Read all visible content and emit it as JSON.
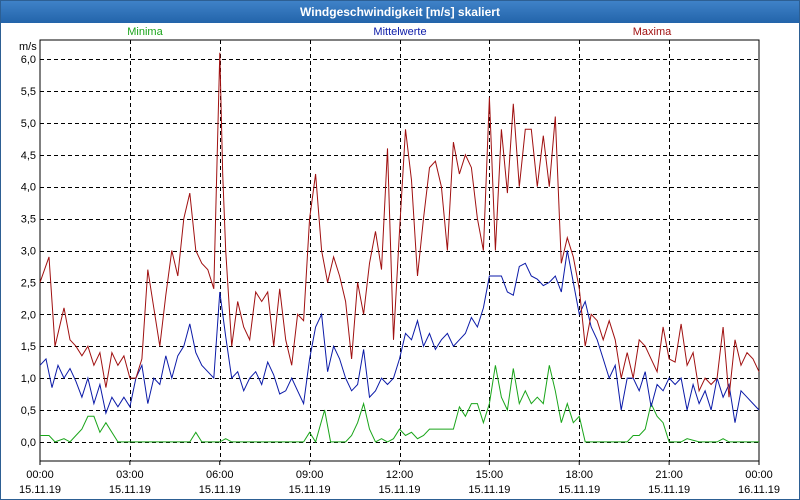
{
  "window": {
    "title": "Windgeschwindigkeit [m/s] skaliert"
  },
  "chart_data": {
    "type": "line",
    "title": "Windgeschwindigkeit [m/s] skaliert",
    "ylabel": "m/s",
    "ylim": [
      -0.3,
      6.3
    ],
    "xlim": [
      0,
      24
    ],
    "yticks": [
      0.0,
      0.5,
      1.0,
      1.5,
      2.0,
      2.5,
      3.0,
      3.5,
      4.0,
      4.5,
      5.0,
      5.5,
      6.0
    ],
    "ytick_labels": [
      "0,0",
      "0,5",
      "1,0",
      "1,5",
      "2,0",
      "2,5",
      "3,0",
      "3,5",
      "4,0",
      "4,5",
      "5,0",
      "5,5",
      "6,0"
    ],
    "xticks": [
      {
        "time": "00:00",
        "date": "15.11.19"
      },
      {
        "time": "03:00",
        "date": "15.11.19"
      },
      {
        "time": "06:00",
        "date": "15.11.19"
      },
      {
        "time": "09:00",
        "date": "15.11.19"
      },
      {
        "time": "12:00",
        "date": "15.11.19"
      },
      {
        "time": "15:00",
        "date": "15.11.19"
      },
      {
        "time": "18:00",
        "date": "15.11.19"
      },
      {
        "time": "21:00",
        "date": "15.11.19"
      },
      {
        "time": "00:00",
        "date": "16.11.19"
      }
    ],
    "grid": true,
    "series": [
      {
        "name": "Minima",
        "color": "#1aa51a",
        "x": [
          0,
          0.3,
          0.5,
          0.8,
          1.0,
          1.2,
          1.4,
          1.6,
          1.8,
          2.0,
          2.2,
          2.6,
          3.0,
          5.0,
          5.2,
          5.4,
          6.0,
          6.2,
          6.4,
          8.8,
          9.0,
          9.2,
          9.5,
          9.7,
          10.0,
          10.2,
          10.4,
          10.6,
          10.8,
          11.0,
          11.2,
          11.4,
          11.6,
          11.8,
          12.0,
          12.2,
          12.4,
          12.6,
          12.8,
          13.0,
          13.4,
          13.8,
          14.0,
          14.2,
          14.4,
          14.6,
          14.8,
          15.0,
          15.2,
          15.4,
          15.6,
          15.8,
          16.0,
          16.2,
          16.4,
          16.6,
          16.8,
          17.0,
          17.2,
          17.4,
          17.6,
          17.8,
          18.0,
          18.2,
          18.4,
          18.6,
          19.0,
          19.4,
          19.6,
          19.8,
          20.0,
          20.2,
          20.4,
          20.6,
          20.8,
          21.0,
          21.2,
          21.4,
          21.6,
          22.0,
          22.6,
          22.8,
          23.0,
          23.4,
          24.0
        ],
        "values": [
          0.1,
          0.1,
          0.0,
          0.05,
          0.0,
          0.1,
          0.2,
          0.4,
          0.4,
          0.15,
          0.3,
          0.0,
          0.0,
          0.0,
          0.15,
          0.0,
          0.0,
          0.05,
          0.0,
          0.0,
          0.15,
          0.0,
          0.5,
          0.0,
          0.0,
          0.0,
          0.1,
          0.3,
          0.6,
          0.2,
          0.0,
          0.05,
          0.0,
          0.05,
          0.2,
          0.1,
          0.15,
          0.05,
          0.1,
          0.2,
          0.2,
          0.2,
          0.55,
          0.4,
          0.6,
          0.6,
          0.3,
          0.6,
          1.2,
          0.7,
          0.5,
          1.15,
          0.6,
          0.8,
          0.6,
          0.7,
          0.6,
          1.2,
          0.8,
          0.3,
          0.6,
          0.3,
          0.4,
          0.0,
          0.0,
          0.0,
          0.0,
          0.0,
          0.0,
          0.1,
          0.1,
          0.2,
          0.6,
          0.4,
          0.3,
          0.0,
          0.0,
          0.0,
          0.05,
          0.0,
          0.0,
          0.05,
          0.0,
          0.0,
          0.0
        ]
      },
      {
        "name": "Mittelwerte",
        "color": "#0b1aa8",
        "x": [
          0,
          0.2,
          0.4,
          0.6,
          0.8,
          1.0,
          1.2,
          1.4,
          1.6,
          1.8,
          2.0,
          2.2,
          2.4,
          2.6,
          2.8,
          3.0,
          3.2,
          3.4,
          3.6,
          3.8,
          4.0,
          4.2,
          4.4,
          4.6,
          4.8,
          5.0,
          5.2,
          5.4,
          5.6,
          5.8,
          6.0,
          6.2,
          6.4,
          6.6,
          6.8,
          7.0,
          7.2,
          7.4,
          7.6,
          7.8,
          8.0,
          8.2,
          8.4,
          8.6,
          8.8,
          9.0,
          9.2,
          9.4,
          9.6,
          9.8,
          10.0,
          10.2,
          10.4,
          10.6,
          10.8,
          11.0,
          11.2,
          11.4,
          11.6,
          11.8,
          12.0,
          12.2,
          12.4,
          12.6,
          12.8,
          13.0,
          13.2,
          13.4,
          13.6,
          13.8,
          14.0,
          14.2,
          14.4,
          14.6,
          14.8,
          15.0,
          15.2,
          15.4,
          15.6,
          15.8,
          16.0,
          16.2,
          16.4,
          16.6,
          16.8,
          17.0,
          17.2,
          17.4,
          17.6,
          17.8,
          18.0,
          18.2,
          18.4,
          18.6,
          18.8,
          19.0,
          19.2,
          19.4,
          19.6,
          19.8,
          20.0,
          20.2,
          20.4,
          20.6,
          20.8,
          21.0,
          21.2,
          21.4,
          21.6,
          21.8,
          22.0,
          22.2,
          22.4,
          22.6,
          22.8,
          23.0,
          23.2,
          23.4,
          23.6,
          23.8,
          24.0
        ],
        "values": [
          1.2,
          1.3,
          0.85,
          1.2,
          1.0,
          1.15,
          0.95,
          0.7,
          1.0,
          0.6,
          0.9,
          0.45,
          0.7,
          0.55,
          0.7,
          0.55,
          1.0,
          1.2,
          0.6,
          1.0,
          0.9,
          1.35,
          1.0,
          1.35,
          1.5,
          1.85,
          1.4,
          1.2,
          1.1,
          1.0,
          2.35,
          1.65,
          1.0,
          1.1,
          0.8,
          1.0,
          1.1,
          0.9,
          1.25,
          1.05,
          0.75,
          0.8,
          1.0,
          0.8,
          0.6,
          1.3,
          1.8,
          2.0,
          1.1,
          1.5,
          1.3,
          1.0,
          0.8,
          0.9,
          1.45,
          0.7,
          0.8,
          1.0,
          0.9,
          1.0,
          1.3,
          1.7,
          1.6,
          1.9,
          1.5,
          1.7,
          1.45,
          1.6,
          1.7,
          1.5,
          1.6,
          1.7,
          1.95,
          1.8,
          2.1,
          2.6,
          2.6,
          2.6,
          2.35,
          2.3,
          2.75,
          2.8,
          2.6,
          2.55,
          2.45,
          2.5,
          2.6,
          2.35,
          3.0,
          2.5,
          2.0,
          2.2,
          1.8,
          1.6,
          1.3,
          1.0,
          1.2,
          0.5,
          1.0,
          1.0,
          0.8,
          1.1,
          0.55,
          0.9,
          0.8,
          1.0,
          0.9,
          1.0,
          0.5,
          0.9,
          0.6,
          0.8,
          0.5,
          1.0,
          0.7,
          0.9,
          0.3,
          0.8,
          0.7,
          0.6,
          0.5
        ]
      },
      {
        "name": "Maxima",
        "color": "#a01010",
        "x": [
          0,
          0.3,
          0.5,
          0.8,
          1.0,
          1.2,
          1.4,
          1.6,
          1.8,
          2.0,
          2.2,
          2.4,
          2.6,
          2.8,
          3.0,
          3.2,
          3.4,
          3.6,
          3.8,
          4.0,
          4.2,
          4.4,
          4.6,
          4.8,
          5.0,
          5.2,
          5.4,
          5.6,
          5.8,
          6.0,
          6.1,
          6.2,
          6.4,
          6.6,
          6.8,
          7.0,
          7.2,
          7.4,
          7.6,
          7.8,
          8.0,
          8.2,
          8.4,
          8.6,
          8.8,
          9.0,
          9.2,
          9.4,
          9.6,
          9.8,
          10.0,
          10.2,
          10.4,
          10.6,
          10.8,
          11.0,
          11.2,
          11.4,
          11.6,
          11.8,
          12.0,
          12.2,
          12.4,
          12.6,
          12.8,
          13.0,
          13.2,
          13.4,
          13.6,
          13.8,
          14.0,
          14.2,
          14.4,
          14.6,
          14.8,
          15.0,
          15.2,
          15.4,
          15.6,
          15.8,
          16.0,
          16.2,
          16.4,
          16.6,
          16.8,
          17.0,
          17.2,
          17.4,
          17.6,
          17.8,
          18.0,
          18.2,
          18.4,
          18.6,
          18.8,
          19.0,
          19.2,
          19.4,
          19.6,
          19.8,
          20.0,
          20.2,
          20.4,
          20.6,
          20.8,
          21.0,
          21.2,
          21.4,
          21.6,
          21.8,
          22.0,
          22.2,
          22.4,
          22.6,
          22.8,
          23.0,
          23.2,
          23.4,
          23.6,
          23.8,
          24.0
        ],
        "values": [
          2.5,
          2.9,
          1.5,
          2.1,
          1.6,
          1.5,
          1.35,
          1.5,
          1.2,
          1.4,
          0.85,
          1.4,
          1.2,
          1.35,
          1.0,
          1.0,
          1.3,
          2.7,
          2.1,
          1.5,
          2.3,
          3.0,
          2.6,
          3.5,
          3.9,
          3.0,
          2.8,
          2.7,
          2.4,
          6.1,
          4.2,
          3.0,
          1.5,
          2.2,
          1.8,
          1.6,
          2.35,
          2.2,
          2.35,
          1.5,
          2.4,
          1.6,
          1.2,
          2.0,
          1.9,
          3.5,
          4.2,
          3.0,
          2.5,
          2.9,
          2.6,
          2.2,
          1.3,
          2.5,
          2.0,
          2.8,
          3.3,
          2.7,
          4.6,
          1.6,
          3.3,
          4.9,
          4.1,
          2.6,
          3.5,
          4.3,
          4.4,
          4.0,
          3.0,
          4.7,
          4.2,
          4.5,
          4.3,
          3.5,
          3.0,
          5.4,
          3.0,
          4.9,
          3.9,
          5.3,
          4.0,
          4.9,
          4.9,
          4.0,
          4.8,
          4.0,
          5.1,
          2.8,
          3.2,
          2.9,
          2.4,
          1.5,
          2.0,
          1.9,
          1.6,
          1.9,
          1.6,
          1.0,
          1.4,
          1.0,
          1.6,
          1.5,
          1.3,
          1.1,
          1.8,
          1.3,
          1.25,
          1.85,
          1.2,
          1.4,
          0.8,
          1.0,
          0.9,
          1.0,
          1.8,
          0.7,
          1.6,
          1.2,
          1.4,
          1.3,
          1.1
        ]
      }
    ]
  }
}
